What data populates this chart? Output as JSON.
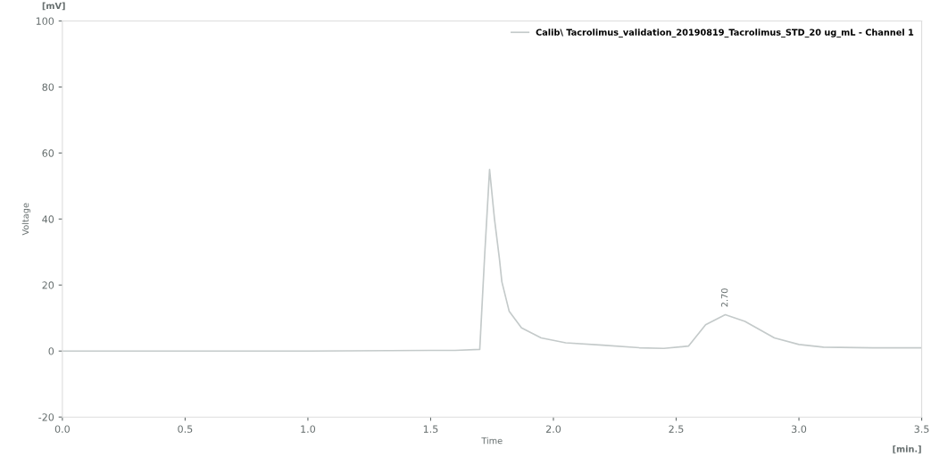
{
  "chart_data": {
    "type": "line",
    "xlabel": "Time",
    "ylabel": "Voltage",
    "xlim": [
      0,
      3.5
    ],
    "ylim": [
      -20,
      100
    ],
    "xticks": [
      {
        "value": 0,
        "label": "0.0"
      },
      {
        "value": 0.5,
        "label": "0.5"
      },
      {
        "value": 1,
        "label": "1.0"
      },
      {
        "value": 1.5,
        "label": "1.5"
      },
      {
        "value": 2,
        "label": "2.0"
      },
      {
        "value": 2.5,
        "label": "2.5"
      },
      {
        "value": 3,
        "label": "3.0"
      },
      {
        "value": 3.5,
        "label": "3.5"
      }
    ],
    "yticks": [
      -20,
      0,
      20,
      40,
      60,
      80,
      100
    ],
    "grid": false,
    "legend": "top right",
    "marker": "none",
    "line_style": "solid",
    "series": [
      {
        "name": "Calib\\ Tacrolimus_validation_20190819_Tacrolimus_STD_20 ug_mL - Channel 1",
        "color": "#c4caca",
        "x": [
          0,
          0.5,
          1.0,
          1.5,
          1.6,
          1.7,
          1.72,
          1.74,
          1.76,
          1.78,
          1.79,
          1.82,
          1.87,
          1.95,
          2.05,
          2.2,
          2.35,
          2.45,
          2.55,
          2.62,
          2.7,
          2.78,
          2.9,
          3.0,
          3.1,
          3.3,
          3.5
        ],
        "values": [
          0,
          0,
          0,
          0.2,
          0.2,
          0.5,
          29,
          55,
          40,
          28,
          21,
          12,
          7,
          4,
          2.5,
          1.8,
          1,
          0.8,
          1.5,
          8,
          11,
          9,
          4,
          2,
          1.2,
          1,
          1
        ]
      }
    ],
    "annotations": [
      {
        "text": "2.70",
        "x": 2.7,
        "y": 11
      },
      "[mV]",
      "[min.]"
    ]
  }
}
